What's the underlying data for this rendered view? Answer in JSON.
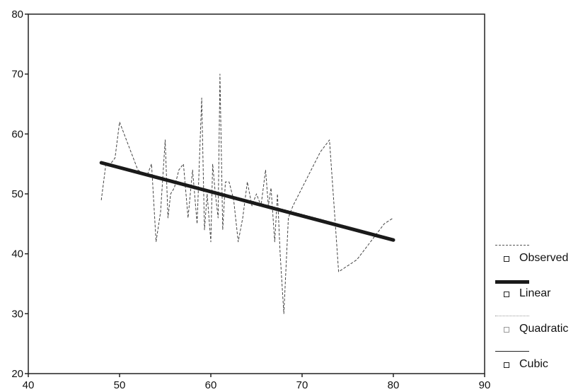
{
  "chart_data": {
    "type": "line",
    "title": "",
    "xlabel": "",
    "ylabel": "",
    "xlim": [
      40,
      90
    ],
    "ylim": [
      20,
      80
    ],
    "x_ticks": [
      40,
      50,
      60,
      70,
      80,
      90
    ],
    "y_ticks": [
      20,
      30,
      40,
      50,
      60,
      70,
      80
    ],
    "grid": false,
    "legend_position": "right",
    "series": [
      {
        "name": "Observed",
        "style": "dashed",
        "color": "#444444",
        "points": [
          [
            48,
            49
          ],
          [
            48.5,
            55
          ],
          [
            49,
            55
          ],
          [
            49.5,
            56
          ],
          [
            50,
            62
          ],
          [
            51,
            58
          ],
          [
            52,
            54
          ],
          [
            53,
            53
          ],
          [
            53.5,
            55
          ],
          [
            54,
            42
          ],
          [
            54.5,
            47
          ],
          [
            55,
            59
          ],
          [
            55.3,
            46
          ],
          [
            55.6,
            50
          ],
          [
            56,
            51
          ],
          [
            56.5,
            54
          ],
          [
            57,
            55
          ],
          [
            57.5,
            46
          ],
          [
            58,
            54
          ],
          [
            58.5,
            45
          ],
          [
            59,
            66
          ],
          [
            59.3,
            44
          ],
          [
            59.6,
            50
          ],
          [
            60,
            42
          ],
          [
            60.2,
            55
          ],
          [
            60.5,
            50
          ],
          [
            60.8,
            46
          ],
          [
            61,
            70
          ],
          [
            61.3,
            44
          ],
          [
            61.6,
            52
          ],
          [
            62,
            52
          ],
          [
            62.5,
            49
          ],
          [
            63,
            42
          ],
          [
            63.5,
            46
          ],
          [
            64,
            52
          ],
          [
            64.5,
            48
          ],
          [
            65,
            50
          ],
          [
            65.5,
            48
          ],
          [
            66,
            54
          ],
          [
            66.3,
            48
          ],
          [
            66.6,
            51
          ],
          [
            67,
            42
          ],
          [
            67.3,
            50
          ],
          [
            67.6,
            40
          ],
          [
            68,
            30
          ],
          [
            68.5,
            46
          ],
          [
            69,
            48
          ],
          [
            70,
            51
          ],
          [
            71,
            54
          ],
          [
            72,
            57
          ],
          [
            73,
            59
          ],
          [
            73.5,
            48
          ],
          [
            74,
            37
          ],
          [
            75,
            38
          ],
          [
            76,
            39
          ],
          [
            77,
            41
          ],
          [
            78,
            43
          ],
          [
            79,
            45
          ],
          [
            80,
            46
          ]
        ]
      },
      {
        "name": "Linear",
        "style": "solid-thick",
        "color": "#1a1a1a",
        "points": [
          [
            48,
            55.2
          ],
          [
            80,
            42.3
          ]
        ]
      },
      {
        "name": "Quadratic",
        "style": "dotted",
        "color": "#888888",
        "points": [
          [
            48,
            55.3
          ],
          [
            56,
            52.2
          ],
          [
            64,
            49.0
          ],
          [
            72,
            45.8
          ],
          [
            80,
            42.5
          ]
        ]
      },
      {
        "name": "Cubic",
        "style": "solid-thin",
        "color": "#222222",
        "points": [
          [
            48,
            55.0
          ],
          [
            56,
            52.0
          ],
          [
            64,
            48.9
          ],
          [
            72,
            45.7
          ],
          [
            80,
            42.4
          ]
        ]
      }
    ]
  },
  "legend": {
    "items": [
      {
        "label": "Observed"
      },
      {
        "label": "Linear"
      },
      {
        "label": "Quadratic"
      },
      {
        "label": "Cubic"
      }
    ]
  }
}
